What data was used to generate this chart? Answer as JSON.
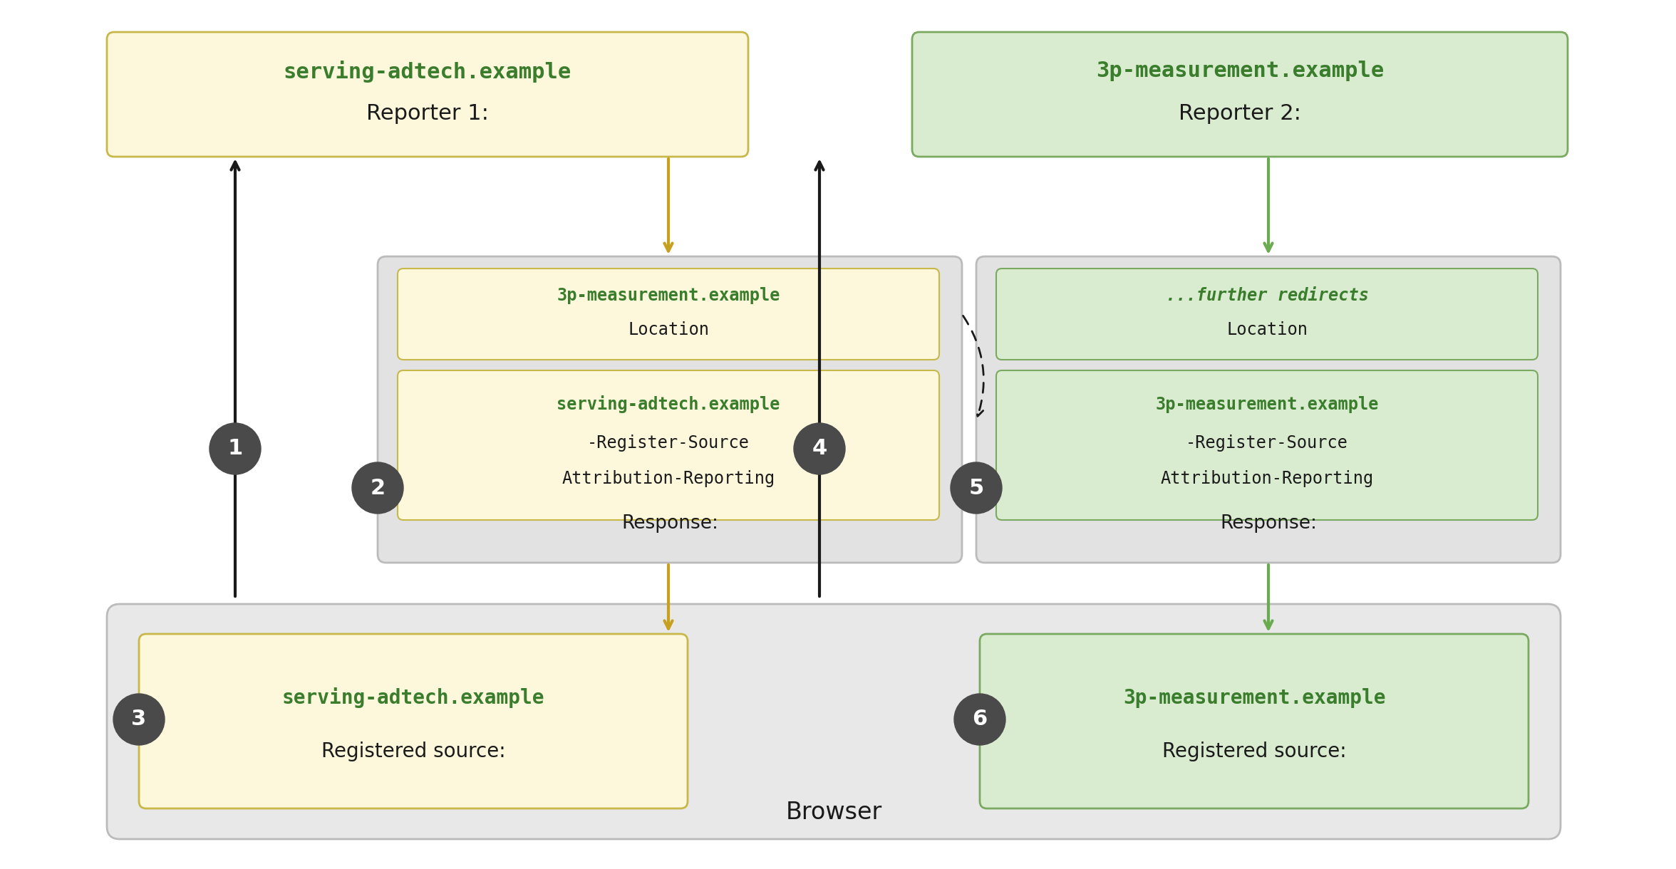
{
  "bg_color": "#ffffff",
  "yellow_color": "#fdf8dc",
  "yellow_border": "#c8b84a",
  "green_color": "#daecd0",
  "green_border": "#7aaa60",
  "gray_color": "#e8e8e8",
  "gray_border": "#bbbbbb",
  "green_text": "#3a7d2c",
  "black_text": "#1a1a1a",
  "circle_color": "#4a4a4a",
  "arrow_yellow": "#c8a020",
  "arrow_green": "#6aaa50",
  "arrow_black": "#1a1a1a",
  "browser_label": "Browser",
  "box3_line1": "Registered source:",
  "box3_line2": "serving-adtech.example",
  "box6_line1": "Registered source:",
  "box6_line2": "3p-measurement.example",
  "box2_label": "Response:",
  "box2_inner1_l1": "Attribution-Reporting",
  "box2_inner1_l2": "-Register-Source",
  "box2_inner1_l3": "serving-adtech.example",
  "box2_inner2_l1": "Location",
  "box2_inner2_l2": "3p-measurement.example",
  "box5_label": "Response:",
  "box5_inner1_l1": "Attribution-Reporting",
  "box5_inner1_l2": "-Register-Source",
  "box5_inner1_l3": "3p-measurement.example",
  "box5_inner2_l1": "Location",
  "box5_inner2_l2": "...further redirects",
  "rep1_l1": "Reporter 1:",
  "rep1_l2": "serving-adtech.example",
  "rep2_l1": "Reporter 2:",
  "rep2_l2": "3p-measurement.example"
}
